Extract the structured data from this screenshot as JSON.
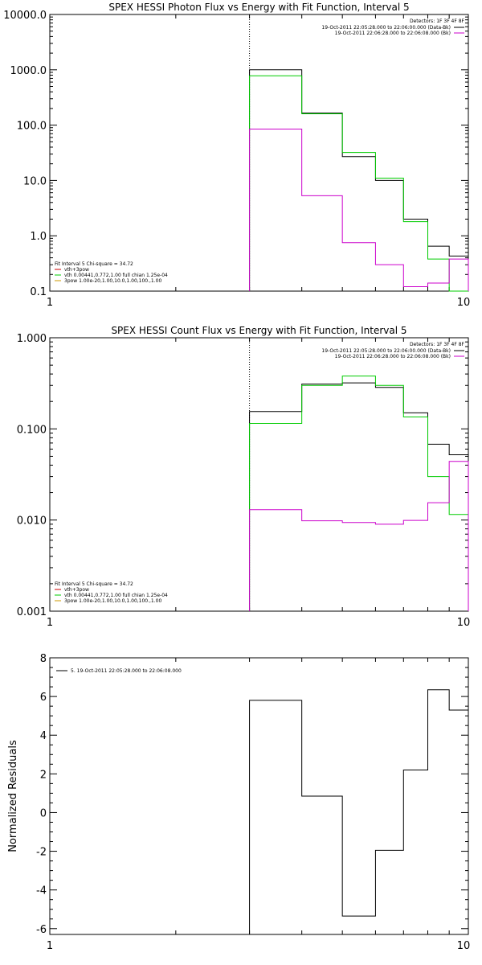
{
  "chart_data": [
    {
      "type": "line",
      "title": "SPEX HESSI Photon Flux vs Energy with Fit Function, Interval 5",
      "xscale": "log",
      "yscale": "log",
      "xlim": [
        1,
        10
      ],
      "ylim": [
        0.1,
        10000
      ],
      "x_ticks": [
        "1",
        "10"
      ],
      "y_ticks": [
        "0.1",
        "1.0",
        "10.0",
        "100.0",
        "1000.0",
        "10000.0"
      ],
      "ylabel": "",
      "xlabel": "",
      "marker_line_x": 3,
      "legend_top": {
        "heading": "Detectors: 1F 3F 4F 8F",
        "entries": [
          {
            "text": "19-Oct-2011 22:05:28.000 to 22:06:00.000 (Data-Bk)",
            "color": "#000000"
          },
          {
            "text": "19-Oct-2011 22:06:28.000 to 22:06:08.000 (Bk)",
            "color": "#cc00cc"
          }
        ]
      },
      "legend_bottom": {
        "heading": "Fit Interval 5   Chi-square = 34.72",
        "entries": [
          {
            "text": "vth+3pow",
            "color": "#cc0000"
          },
          {
            "text": "vth 0.00441,0.772,1.00   full chian 1.25e-04",
            "color": "#00cc00"
          },
          {
            "text": "3pow 1.00e-20,1.00,10.0,1.00,100.,1.00",
            "color": "#cc9900"
          }
        ]
      },
      "series": [
        {
          "color": "#000000",
          "edges": [
            3,
            4,
            5,
            6,
            7,
            8,
            9,
            10
          ],
          "values": [
            1000,
            165,
            27,
            10,
            2.0,
            0.65,
            0.43
          ]
        },
        {
          "color": "#00cc00",
          "edges": [
            3,
            4,
            5,
            6,
            7,
            8,
            9,
            10
          ],
          "values": [
            780,
            160,
            32,
            11,
            1.8,
            0.38,
            0.1
          ]
        },
        {
          "color": "#cc00cc",
          "edges": [
            3,
            4,
            5,
            6,
            7,
            8,
            9,
            10
          ],
          "values": [
            85,
            5.3,
            0.75,
            0.3,
            0.12,
            0.14,
            0.38
          ]
        }
      ]
    },
    {
      "type": "line",
      "title": "SPEX HESSI Count Flux vs Energy with Fit Function, Interval 5",
      "xscale": "log",
      "yscale": "log",
      "xlim": [
        1,
        10
      ],
      "ylim": [
        0.001,
        1.0
      ],
      "x_ticks": [
        "1",
        "10"
      ],
      "y_ticks": [
        "0.001",
        "0.010",
        "0.100",
        "1.000"
      ],
      "ylabel": "",
      "xlabel": "",
      "marker_line_x": 3,
      "legend_top": {
        "heading": "Detectors: 1F 3F 4F 8F",
        "entries": [
          {
            "text": "19-Oct-2011 22:05:28.000 to 22:06:00.000 (Data-Bk)",
            "color": "#000000"
          },
          {
            "text": "19-Oct-2011 22:06:28.000 to 22:06:08.000 (Bk)",
            "color": "#cc00cc"
          }
        ]
      },
      "legend_bottom": {
        "heading": "Fit Interval 5   Chi-square = 34.72",
        "entries": [
          {
            "text": "vth+3pow",
            "color": "#cc0000"
          },
          {
            "text": "vth 0.00441,0.772,1.00   full chian 1.25e-04",
            "color": "#00cc00"
          },
          {
            "text": "3pow 1.00e-20,1.00,10.0,1.00,100.,1.00",
            "color": "#cc9900"
          }
        ]
      },
      "series": [
        {
          "color": "#000000",
          "edges": [
            3,
            4,
            5,
            6,
            7,
            8,
            9,
            10
          ],
          "values": [
            0.155,
            0.31,
            0.32,
            0.285,
            0.15,
            0.068,
            0.052
          ]
        },
        {
          "color": "#00cc00",
          "edges": [
            3,
            4,
            5,
            6,
            7,
            8,
            9,
            10
          ],
          "values": [
            0.115,
            0.3,
            0.38,
            0.3,
            0.135,
            0.03,
            0.0115
          ]
        },
        {
          "color": "#cc00cc",
          "edges": [
            3,
            4,
            5,
            6,
            7,
            8,
            9,
            10
          ],
          "values": [
            0.013,
            0.0098,
            0.0094,
            0.009,
            0.0099,
            0.0155,
            0.044
          ]
        }
      ]
    },
    {
      "type": "line",
      "title": "",
      "xscale": "log",
      "yscale": "linear",
      "xlim": [
        1,
        10
      ],
      "ylim": [
        -6.3,
        8
      ],
      "x_ticks": [
        "1",
        "10"
      ],
      "y_ticks": [
        "8",
        "6",
        "4",
        "2",
        "0",
        "-2",
        "-4",
        "-6"
      ],
      "ylabel": "Normalized Residuals",
      "xlabel": "",
      "legend_top": {
        "heading": "",
        "entries": [
          {
            "text": "5. 19-Oct-2011 22:05:28.000 to 22:06:08.000",
            "color": "#000000"
          }
        ]
      },
      "series": [
        {
          "color": "#000000",
          "edges": [
            3,
            4,
            5,
            6,
            7,
            8,
            9,
            10
          ],
          "values": [
            5.8,
            0.85,
            -5.35,
            -1.95,
            2.2,
            6.35,
            5.3
          ]
        }
      ]
    }
  ]
}
